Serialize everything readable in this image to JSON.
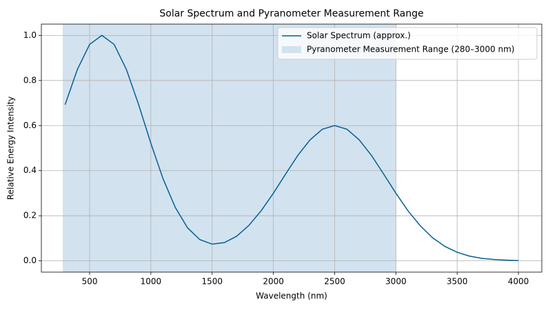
{
  "chart_data": {
    "type": "line",
    "title": "Solar Spectrum and Pyranometer Measurement Range",
    "xlabel": "Wavelength (nm)",
    "ylabel": "Relative Energy Intensity",
    "x": [
      300,
      400,
      500,
      600,
      700,
      800,
      900,
      1000,
      1100,
      1200,
      1300,
      1400,
      1500,
      1600,
      1700,
      1800,
      1900,
      2000,
      2100,
      2200,
      2300,
      2400,
      2500,
      2600,
      2700,
      2800,
      2900,
      3000,
      3100,
      3200,
      3300,
      3400,
      3500,
      3600,
      3700,
      3800,
      3900,
      4000
    ],
    "series": [
      {
        "name": "Solar Spectrum (approx.)",
        "color": "#006094",
        "values": [
          0.693,
          0.849,
          0.96,
          1.0,
          0.96,
          0.849,
          0.693,
          0.521,
          0.363,
          0.236,
          0.146,
          0.094,
          0.074,
          0.081,
          0.109,
          0.157,
          0.222,
          0.3,
          0.385,
          0.468,
          0.537,
          0.584,
          0.6,
          0.584,
          0.537,
          0.468,
          0.385,
          0.3,
          0.221,
          0.155,
          0.102,
          0.064,
          0.038,
          0.021,
          0.011,
          0.006,
          0.003,
          0.001
        ]
      }
    ],
    "span": {
      "start": 280,
      "end": 3000,
      "label": "Pyranometer Measurement Range (280–3000 nm)",
      "color": "#d3e2ef"
    },
    "xlim": [
      106,
      4191
    ],
    "ylim": [
      -0.05,
      1.05
    ],
    "xticks": [
      500,
      1000,
      1500,
      2000,
      2500,
      3000,
      3500,
      4000
    ],
    "yticks": [
      {
        "value": 0,
        "label": "0.0"
      },
      {
        "value": 0.2,
        "label": "0.2"
      },
      {
        "value": 0.4,
        "label": "0.4"
      },
      {
        "value": 0.6,
        "label": "0.6"
      },
      {
        "value": 0.8,
        "label": "0.8"
      },
      {
        "value": 1,
        "label": "1.0"
      }
    ],
    "grid": true,
    "legend": "upper right"
  }
}
